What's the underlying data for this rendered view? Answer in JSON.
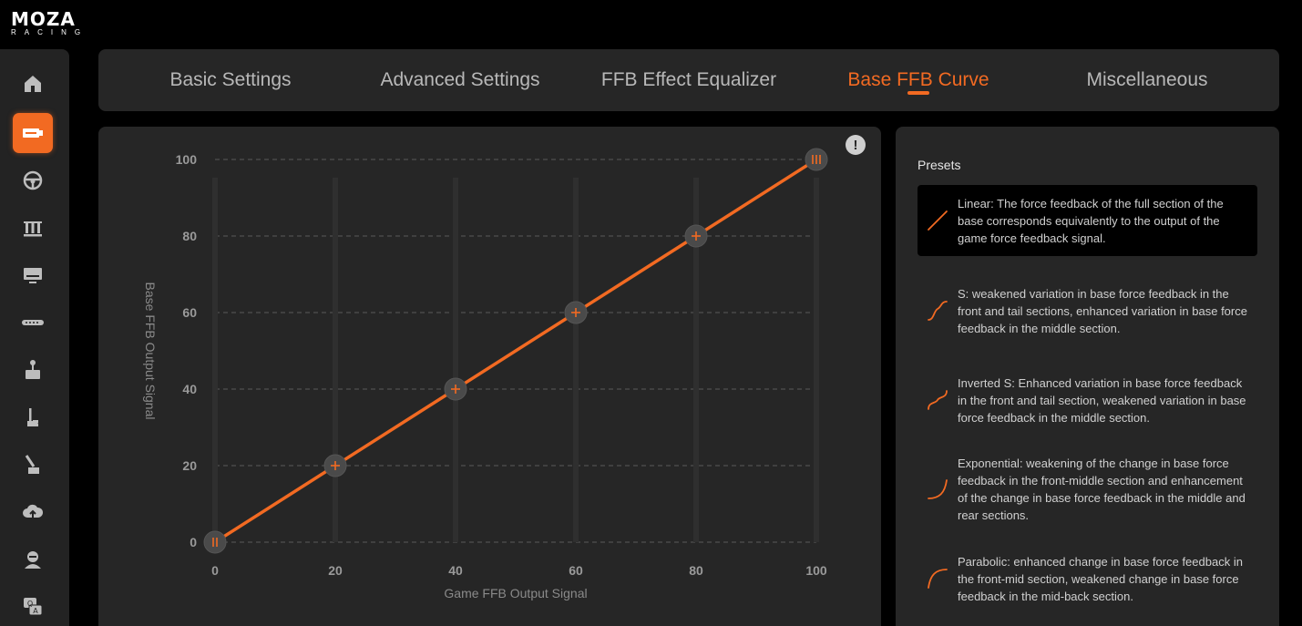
{
  "brand": {
    "name": "MOZA",
    "sub": "RACING"
  },
  "sidebar": {
    "items": [
      {
        "icon": "home-icon",
        "active": false
      },
      {
        "icon": "wheelbase-icon",
        "active": true
      },
      {
        "icon": "steering-wheel-icon",
        "active": false
      },
      {
        "icon": "pedals-icon",
        "active": false
      },
      {
        "icon": "dashboard-icon",
        "active": false
      },
      {
        "icon": "led-bar-icon",
        "active": false
      },
      {
        "icon": "handbrake-icon",
        "active": false
      },
      {
        "icon": "shifter-icon",
        "active": false
      },
      {
        "icon": "sequential-shifter-icon",
        "active": false
      },
      {
        "icon": "cloud-upload-icon",
        "active": false
      },
      {
        "icon": "user-icon",
        "active": false
      },
      {
        "icon": "faq-icon",
        "active": false
      }
    ]
  },
  "tabs": [
    {
      "label": "Basic Settings"
    },
    {
      "label": "Advanced Settings"
    },
    {
      "label": "FFB Effect Equalizer"
    },
    {
      "label": "Base FFB Curve",
      "active": true
    },
    {
      "label": "Miscellaneous"
    }
  ],
  "chart_data": {
    "type": "line",
    "xlabel": "Game FFB Output Signal",
    "ylabel": "Base FFB Output Signal",
    "x": [
      0,
      20,
      40,
      60,
      80,
      100
    ],
    "y": [
      0,
      20,
      40,
      60,
      80,
      100
    ],
    "xticks": [
      "0",
      "20",
      "40",
      "60",
      "80",
      "100"
    ],
    "yticks": [
      "0",
      "20",
      "40",
      "60",
      "80",
      "100"
    ],
    "xlim": [
      0,
      100
    ],
    "ylim": [
      0,
      100
    ],
    "grid": true,
    "line_color": "#f26a22"
  },
  "info_label": "!",
  "presets": {
    "title": "Presets",
    "items": [
      {
        "text": "Linear: The force feedback of the full section of the base corresponds equivalently to the output of the game force feedback signal.",
        "icon": "linear-curve-icon",
        "selected": true
      },
      {
        "text": "S: weakened variation in base force feedback in the front and tail sections, enhanced variation in base force feedback in the middle section.",
        "icon": "s-curve-icon",
        "selected": false
      },
      {
        "text": "Inverted S: Enhanced variation in base force feedback in the front and tail section, weakened variation in base force feedback in the middle section.",
        "icon": "inverted-s-curve-icon",
        "selected": false
      },
      {
        "text": "Exponential: weakening of the change in base force feedback in the front-middle section and enhancement of the change in base force feedback in the middle and rear sections.",
        "icon": "exponential-curve-icon",
        "selected": false
      },
      {
        "text": "Parabolic: enhanced change in base force feedback in the front-mid section, weakened change in base force feedback in the mid-back section.",
        "icon": "parabolic-curve-icon",
        "selected": false
      }
    ]
  },
  "colors": {
    "accent": "#f26a22",
    "panel": "#262626",
    "background": "#000000"
  }
}
